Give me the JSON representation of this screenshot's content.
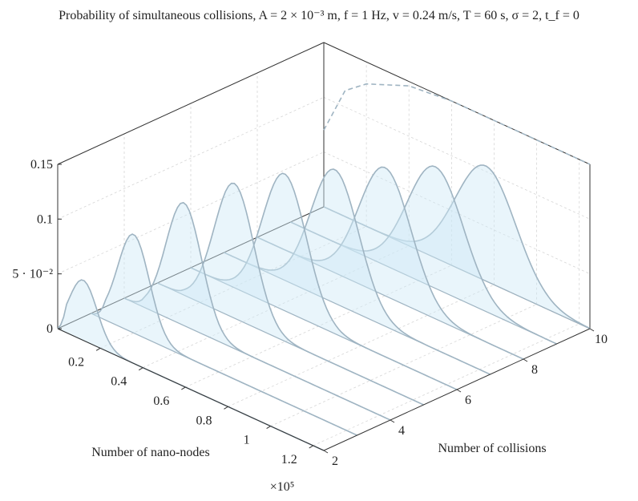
{
  "chart_data": {
    "type": "area",
    "title": "Probability of simultaneous collisions, A = 2 × 10⁻³ m, f = 1 Hz, v = 0.24 m/s, T = 60 s, σ = 2, t_f = 0",
    "xlabel": "Number of nano-nodes",
    "ylabel": "Number of collisions",
    "x_multiplier": "×10⁵",
    "x_ticks": [
      "0.2",
      "0.4",
      "0.6",
      "0.8",
      "1",
      "1.2"
    ],
    "x_tick_values": [
      0.2,
      0.4,
      0.6,
      0.8,
      1.0,
      1.2
    ],
    "y_ticks": [
      "2",
      "4",
      "6",
      "8",
      "10"
    ],
    "y_tick_values": [
      2,
      4,
      6,
      8,
      10
    ],
    "z_ticks": [
      "0",
      "5 · 10⁻²",
      "0.1",
      "0.15"
    ],
    "z_tick_values": [
      0,
      0.05,
      0.1,
      0.15
    ],
    "xlim": [
      0,
      1.25
    ],
    "ylim": [
      2,
      10
    ],
    "zlim": [
      0,
      0.15
    ],
    "grid": true,
    "series": [
      {
        "collisions": 2,
        "peak_x": 0.12,
        "peak_z": 0.055
      },
      {
        "collisions": 3,
        "peak_x": 0.2,
        "peak_z": 0.09
      },
      {
        "collisions": 4,
        "peak_x": 0.28,
        "peak_z": 0.112
      },
      {
        "collisions": 5,
        "peak_x": 0.36,
        "peak_z": 0.123
      },
      {
        "collisions": 6,
        "peak_x": 0.44,
        "peak_z": 0.125
      },
      {
        "collisions": 7,
        "peak_x": 0.52,
        "peak_z": 0.122
      },
      {
        "collisions": 8,
        "peak_x": 0.6,
        "peak_z": 0.117
      },
      {
        "collisions": 9,
        "peak_x": 0.68,
        "peak_z": 0.111
      },
      {
        "collisions": 10,
        "peak_x": 0.76,
        "peak_z": 0.105
      }
    ],
    "envelope_x": [
      0.0,
      0.1,
      0.2,
      0.4,
      0.6,
      0.8,
      1.0,
      1.25
    ],
    "envelope_z": [
      0.07,
      0.115,
      0.13,
      0.146,
      0.153,
      0.157,
      0.16,
      0.162
    ],
    "colors": {
      "fill": "#cfe9f7",
      "stroke": "#9fb4c2",
      "envelope": "#9fb4c2",
      "axis": "#333333",
      "grid": "#d6d6d6"
    }
  }
}
